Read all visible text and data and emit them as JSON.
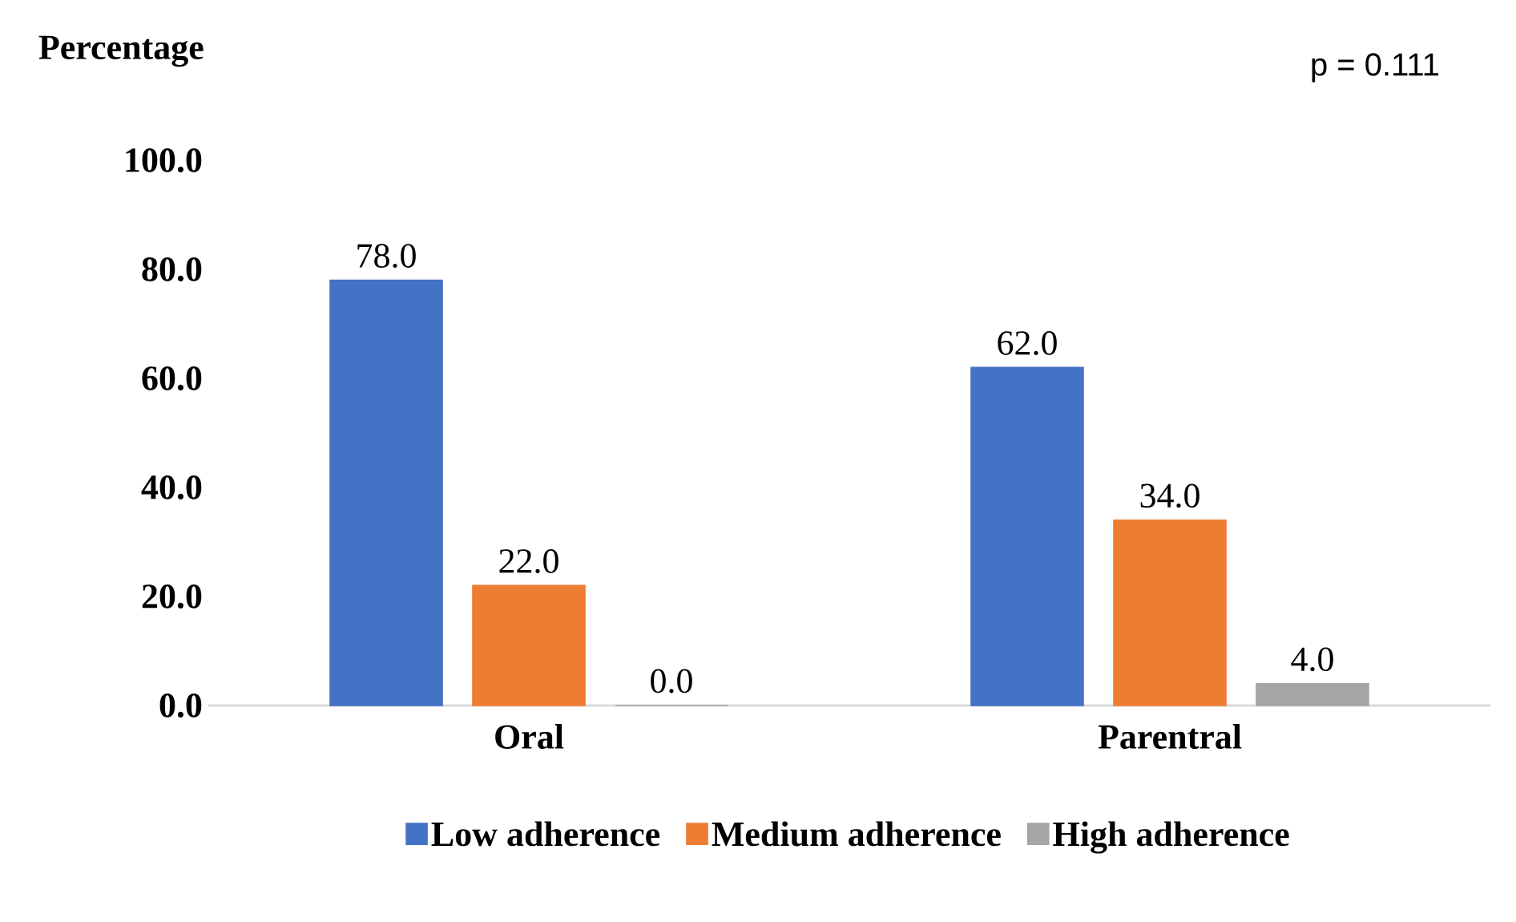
{
  "chart_data": {
    "type": "bar",
    "ylabel": "Percentage",
    "annotations": [
      "p = 0.111"
    ],
    "categories": [
      "Oral",
      "Parentral"
    ],
    "series": [
      {
        "name": "Low adherence",
        "color": "#4472c4",
        "values": [
          78,
          62
        ],
        "value_labels": [
          "78.0",
          "62.0"
        ]
      },
      {
        "name": "Medium adherence",
        "color": "#ed7d31",
        "values": [
          22,
          34
        ],
        "value_labels": [
          "22.0",
          "34.0"
        ]
      },
      {
        "name": "High adherence",
        "color": "#a5a5a5",
        "values": [
          0,
          4
        ],
        "value_labels": [
          "0.0",
          "4.0"
        ]
      }
    ],
    "ylim": [
      0,
      100
    ],
    "yticks": [
      {
        "value": 0,
        "label": "0.0"
      },
      {
        "value": 20,
        "label": "20.0"
      },
      {
        "value": 40,
        "label": "40.0"
      },
      {
        "value": 60,
        "label": "60.0"
      },
      {
        "value": 80,
        "label": "80.0"
      },
      {
        "value": 100,
        "label": "100.0"
      }
    ],
    "grid": false,
    "legend": "bottom"
  }
}
